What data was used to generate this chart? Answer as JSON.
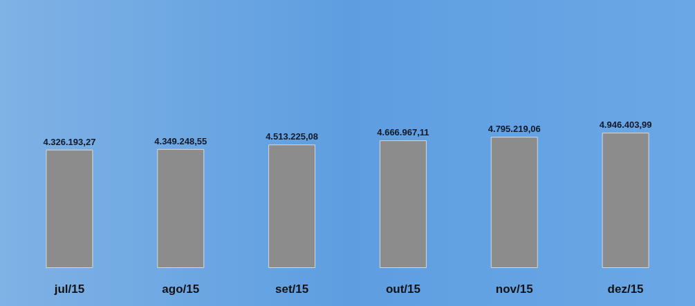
{
  "chart_data": {
    "type": "bar",
    "categories": [
      "jul/15",
      "ago/15",
      "set/15",
      "out/15",
      "nov/15",
      "dez/15"
    ],
    "values": [
      4326193.27,
      4349248.55,
      4513225.08,
      4666967.11,
      4795219.06,
      4946403.99
    ],
    "value_labels": [
      "4.326.193,27",
      "4.349.248,55",
      "4.513.225,08",
      "4.666.967,11",
      "4.795.219,06",
      "4.946.403,99"
    ],
    "color": "#8c8c8c"
  }
}
